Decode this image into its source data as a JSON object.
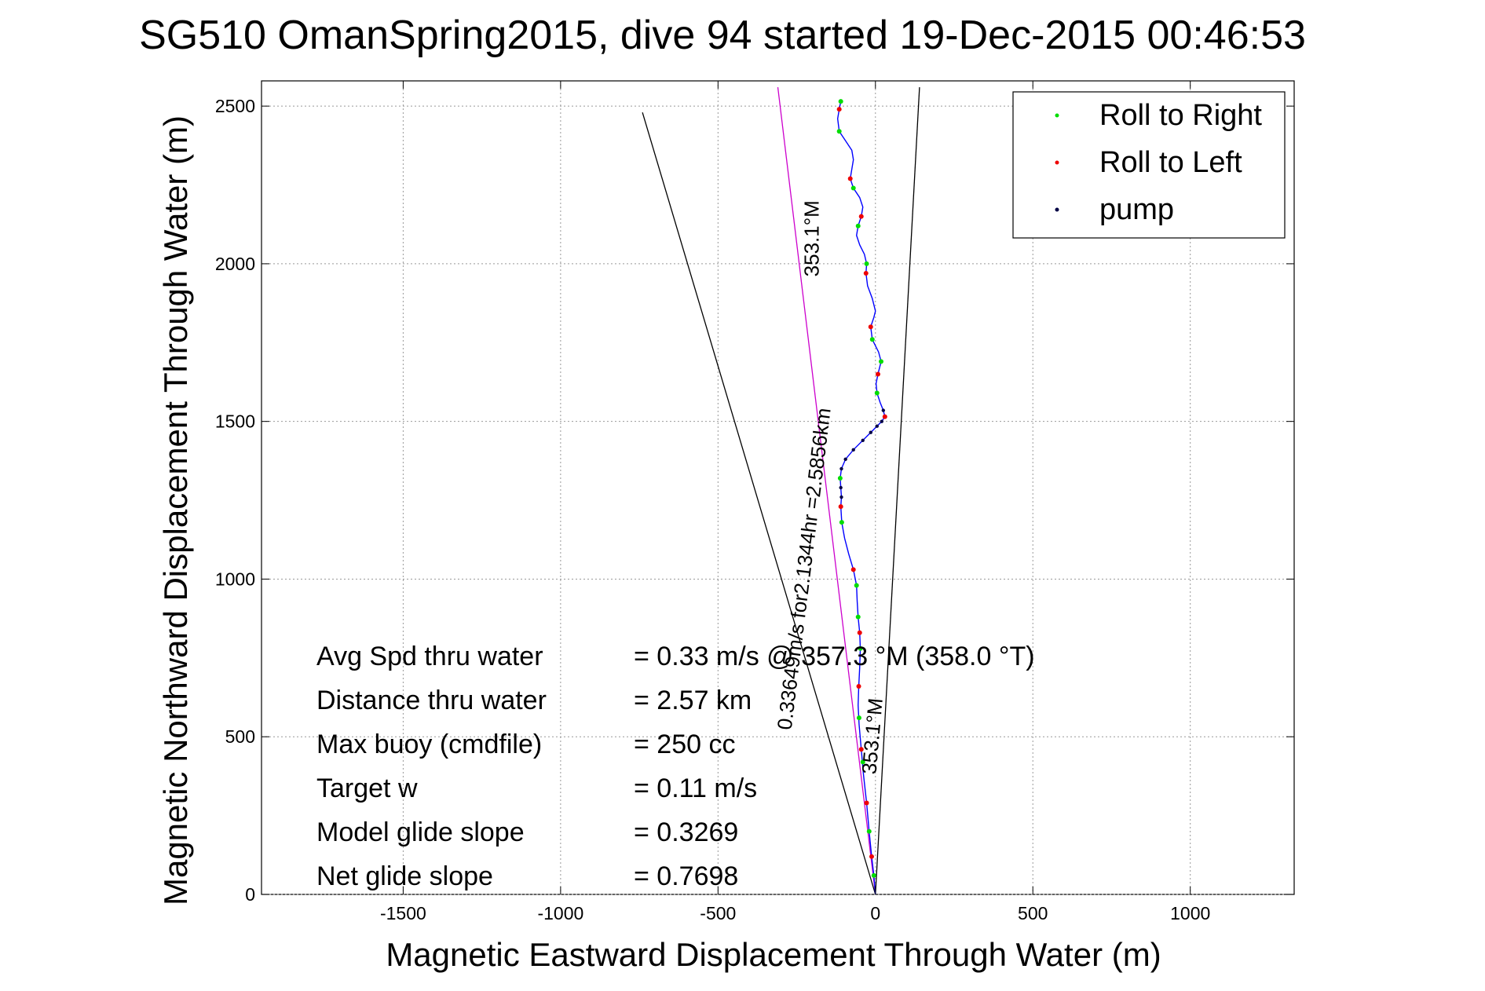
{
  "chart_data": {
    "type": "line",
    "title": "SG510 OmanSpring2015, dive 94 started 19-Dec-2015 00:46:53",
    "xlabel": "Magnetic Eastward Displacement Through Water (m)",
    "ylabel": "Magnetic Northward Displacement Through Water (m)",
    "xlim": [
      -1950,
      1330
    ],
    "ylim": [
      0,
      2580
    ],
    "xticks": [
      -1500,
      -1000,
      -500,
      0,
      500,
      1000
    ],
    "yticks": [
      0,
      500,
      1000,
      1500,
      2000,
      2500
    ],
    "grid": true,
    "legend_position": "top-right",
    "legend": [
      {
        "label": "Roll to Right",
        "color": "#00dd00"
      },
      {
        "label": "Roll to Left",
        "color": "#ee0000"
      },
      {
        "label": "pump",
        "color": "#000044"
      }
    ],
    "track": {
      "name": "glider track",
      "color": "#0000ff",
      "points": [
        [
          0,
          0
        ],
        [
          -5,
          60
        ],
        [
          -12,
          120
        ],
        [
          -20,
          200
        ],
        [
          -28,
          290
        ],
        [
          -38,
          380
        ],
        [
          -45,
          460
        ],
        [
          -52,
          540
        ],
        [
          -55,
          600
        ],
        [
          -53,
          660
        ],
        [
          -50,
          720
        ],
        [
          -48,
          780
        ],
        [
          -50,
          830
        ],
        [
          -55,
          880
        ],
        [
          -58,
          930
        ],
        [
          -60,
          980
        ],
        [
          -70,
          1030
        ],
        [
          -85,
          1080
        ],
        [
          -98,
          1130
        ],
        [
          -107,
          1180
        ],
        [
          -110,
          1230
        ],
        [
          -108,
          1260
        ],
        [
          -110,
          1290
        ],
        [
          -112,
          1320
        ],
        [
          -108,
          1350
        ],
        [
          -95,
          1380
        ],
        [
          -70,
          1410
        ],
        [
          -40,
          1440
        ],
        [
          -15,
          1465
        ],
        [
          5,
          1485
        ],
        [
          20,
          1500
        ],
        [
          30,
          1515
        ],
        [
          25,
          1535
        ],
        [
          15,
          1560
        ],
        [
          5,
          1590
        ],
        [
          2,
          1620
        ],
        [
          8,
          1650
        ],
        [
          18,
          1690
        ],
        [
          10,
          1720
        ],
        [
          -10,
          1760
        ],
        [
          -15,
          1800
        ],
        [
          -5,
          1830
        ],
        [
          0,
          1850
        ],
        [
          -10,
          1890
        ],
        [
          -25,
          1930
        ],
        [
          -30,
          1970
        ],
        [
          -28,
          2000
        ],
        [
          -35,
          2030
        ],
        [
          -50,
          2060
        ],
        [
          -60,
          2090
        ],
        [
          -55,
          2120
        ],
        [
          -45,
          2150
        ],
        [
          -40,
          2180
        ],
        [
          -50,
          2210
        ],
        [
          -70,
          2240
        ],
        [
          -80,
          2270
        ],
        [
          -75,
          2300
        ],
        [
          -70,
          2330
        ],
        [
          -75,
          2360
        ],
        [
          -95,
          2390
        ],
        [
          -115,
          2420
        ],
        [
          -120,
          2460
        ],
        [
          -115,
          2490
        ],
        [
          -110,
          2515
        ]
      ]
    },
    "roll_right_points": [
      [
        -5,
        60
      ],
      [
        -20,
        200
      ],
      [
        -40,
        420
      ],
      [
        -52,
        560
      ],
      [
        -48,
        780
      ],
      [
        -55,
        880
      ],
      [
        -60,
        980
      ],
      [
        -107,
        1180
      ],
      [
        -112,
        1320
      ],
      [
        5,
        1590
      ],
      [
        18,
        1690
      ],
      [
        -10,
        1760
      ],
      [
        -28,
        2000
      ],
      [
        -55,
        2120
      ],
      [
        -70,
        2240
      ],
      [
        -115,
        2420
      ],
      [
        -110,
        2515
      ]
    ],
    "roll_left_points": [
      [
        -12,
        120
      ],
      [
        -28,
        290
      ],
      [
        -45,
        460
      ],
      [
        -53,
        660
      ],
      [
        -50,
        830
      ],
      [
        -70,
        1030
      ],
      [
        -110,
        1230
      ],
      [
        30,
        1515
      ],
      [
        8,
        1650
      ],
      [
        -15,
        1800
      ],
      [
        -30,
        1970
      ],
      [
        -45,
        2150
      ],
      [
        -80,
        2270
      ],
      [
        -115,
        2490
      ]
    ],
    "pump_points": [
      [
        -108,
        1260
      ],
      [
        -110,
        1290
      ],
      [
        -108,
        1350
      ],
      [
        -95,
        1380
      ],
      [
        -70,
        1410
      ],
      [
        -40,
        1440
      ],
      [
        -15,
        1465
      ],
      [
        5,
        1485
      ],
      [
        20,
        1500
      ],
      [
        25,
        1535
      ]
    ],
    "reference_lines": [
      {
        "name": "current-set",
        "color": "#cc00cc",
        "from": [
          0,
          0
        ],
        "to": [
          -310,
          2560
        ]
      },
      {
        "name": "wedge-left",
        "color": "#000000",
        "from": [
          0,
          0
        ],
        "to": [
          -740,
          2480
        ]
      },
      {
        "name": "wedge-right",
        "color": "#000000",
        "from": [
          0,
          0
        ],
        "to": [
          140,
          2560
        ]
      }
    ],
    "annotations": [
      {
        "text": "353.1°M",
        "at": [
          -180,
          2080
        ],
        "rotation": -90,
        "size": 26
      },
      {
        "text": "0.33649m/s for2.1344hr =2.5856km",
        "at": [
          -205,
          1030
        ],
        "rotation": -83,
        "size": 26
      },
      {
        "text": "353.1°M",
        "at": [
          12,
          500
        ],
        "rotation": -85,
        "size": 26
      }
    ],
    "stats": [
      {
        "label": "Avg Spd thru water",
        "value": "=  0.33 m/s @ 357.3 °M (358.0 °T)"
      },
      {
        "label": "Distance thru water",
        "value": "=  2.57 km"
      },
      {
        "label": "Max buoy (cmdfile)",
        "value": "= 250 cc"
      },
      {
        "label": "Target w",
        "value": "= 0.11 m/s"
      },
      {
        "label": "Model glide slope",
        "value": "= 0.3269"
      },
      {
        "label": "Net glide slope",
        "value": "= 0.7698"
      }
    ]
  }
}
